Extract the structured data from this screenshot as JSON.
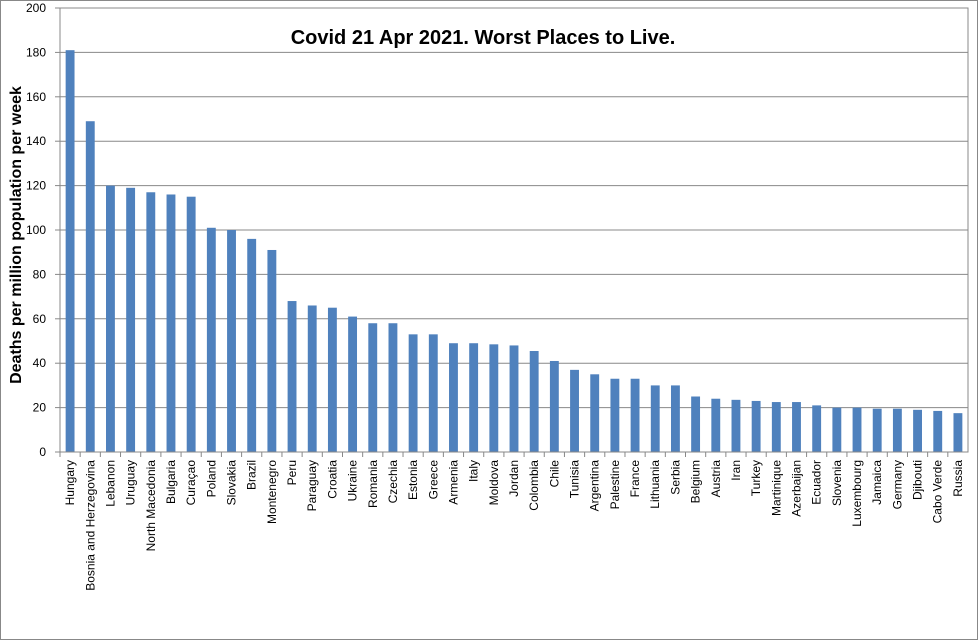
{
  "chart_data": {
    "type": "bar",
    "title": "Covid 21 Apr 2021. Worst Places to Live.",
    "y_label": "Deaths per million population per week",
    "categories": [
      "Hungary",
      "Bosnia and Herzegovina",
      "Lebanon",
      "Uruguay",
      "North Macedonia",
      "Bulgaria",
      "Curaçao",
      "Poland",
      "Slovakia",
      "Brazil",
      "Montenegro",
      "Peru",
      "Paraguay",
      "Croatia",
      "Ukraine",
      "Romania",
      "Czechia",
      "Estonia",
      "Greece",
      "Armenia",
      "Italy",
      "Moldova",
      "Jordan",
      "Colombia",
      "Chile",
      "Tunisia",
      "Argentina",
      "Palestine",
      "France",
      "Lithuania",
      "Serbia",
      "Belgium",
      "Austria",
      "Iran",
      "Turkey",
      "Martinique",
      "Azerbaijan",
      "Ecuador",
      "Slovenia",
      "Luxembourg",
      "Jamaica",
      "Germany",
      "Djibouti",
      "Cabo Verde",
      "Russia"
    ],
    "values": [
      181,
      149,
      120,
      119,
      117,
      116,
      115,
      101,
      100,
      96,
      91,
      68,
      66,
      65,
      61,
      58,
      58,
      53,
      53,
      49,
      49,
      48.5,
      48,
      45.5,
      41,
      37,
      35,
      33,
      33,
      30,
      30,
      25,
      24,
      23.5,
      23,
      22.5,
      22.5,
      21,
      20,
      20,
      19.5,
      19.5,
      19,
      18.5,
      17.5
    ],
    "color": "#4f81bd",
    "ylim": [
      0,
      200
    ],
    "yticks": [
      0,
      20,
      40,
      60,
      80,
      100,
      120,
      140,
      160,
      180,
      200
    ],
    "grid": true
  }
}
